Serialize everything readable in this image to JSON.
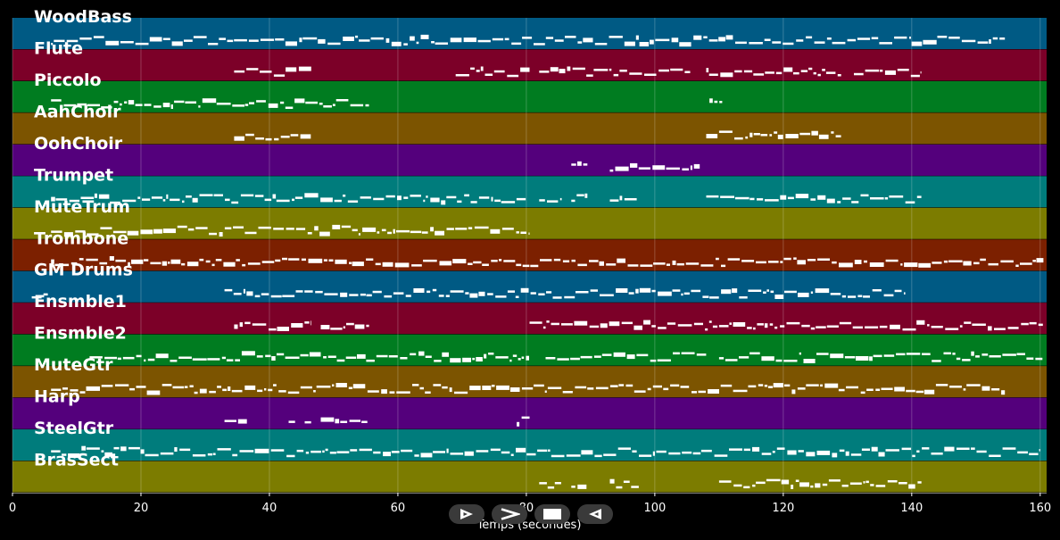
{
  "chart_data": {
    "type": "piano-roll",
    "title": "",
    "xlabel": "Temps (secondes)",
    "ylabel": "",
    "xlim": [
      0,
      161
    ],
    "xticks": [
      0,
      20,
      40,
      60,
      80,
      100,
      120,
      140,
      160
    ],
    "grid": true,
    "tracks": [
      {
        "name": "WoodBass",
        "color": "#005a84",
        "segments": [
          [
            6,
            154.5
          ]
        ],
        "activity": [
          [
            6,
            154.5
          ]
        ]
      },
      {
        "name": "Flute",
        "color": "#7c0028",
        "segments": [
          [
            34.5,
            46.5
          ],
          [
            69,
            80.5
          ],
          [
            82,
            105.5
          ],
          [
            108,
            129
          ],
          [
            131,
            141.5
          ]
        ],
        "activity": [
          [
            34.5,
            46.5
          ],
          [
            69,
            80.5
          ],
          [
            82,
            105.5
          ],
          [
            108,
            129
          ],
          [
            131,
            141.5
          ]
        ]
      },
      {
        "name": "Piccolo",
        "color": "#007c20",
        "segments": [
          [
            6,
            55.5
          ],
          [
            108.5,
            110.5
          ]
        ],
        "activity": [
          [
            6,
            55.5
          ],
          [
            108.5,
            110.5
          ]
        ]
      },
      {
        "name": "AahChoir",
        "color": "#7c5400",
        "segments": [
          [
            34.5,
            46.5
          ],
          [
            108,
            129
          ]
        ],
        "activity": [
          [
            34.5,
            46.5
          ],
          [
            108,
            129
          ]
        ]
      },
      {
        "name": "OohChoir",
        "color": "#54007c",
        "segments": [
          [
            87,
            89.5
          ],
          [
            93,
            107
          ]
        ],
        "activity": [
          [
            87,
            89.5
          ],
          [
            93,
            107
          ]
        ]
      },
      {
        "name": "Trumpet",
        "color": "#007c7c",
        "segments": [
          [
            6,
            80
          ],
          [
            82,
            85.5
          ],
          [
            87,
            89.5
          ],
          [
            93,
            97.5
          ],
          [
            108,
            141.5
          ]
        ],
        "activity": [
          [
            6,
            80
          ],
          [
            82,
            85.5
          ],
          [
            87,
            89.5
          ],
          [
            93,
            97.5
          ],
          [
            108,
            141.5
          ]
        ]
      },
      {
        "name": "MuteTrum",
        "color": "#7c7c00",
        "segments": [
          [
            6,
            80.5
          ]
        ],
        "activity": [
          [
            6,
            80.5
          ]
        ]
      },
      {
        "name": "Trombone",
        "color": "#7c2000",
        "segments": [
          [
            6,
            160.5
          ]
        ],
        "activity": [
          [
            6,
            160.5
          ]
        ]
      },
      {
        "name": "GM Drums",
        "color": "#005a84",
        "segments": [
          [
            3,
            5.5
          ],
          [
            33,
            139
          ]
        ],
        "activity": [
          [
            3,
            5.5
          ],
          [
            33,
            139
          ]
        ]
      },
      {
        "name": "Ensmble1",
        "color": "#7c0028",
        "segments": [
          [
            34.5,
            46.5
          ],
          [
            48,
            55.5
          ],
          [
            80.5,
            160.5
          ]
        ],
        "activity": [
          [
            34.5,
            46.5
          ],
          [
            48,
            55.5
          ],
          [
            80.5,
            160.5
          ]
        ]
      },
      {
        "name": "Ensmble2",
        "color": "#007c20",
        "segments": [
          [
            12,
            80.5
          ],
          [
            83,
            108
          ],
          [
            110,
            160.5
          ]
        ],
        "activity": [
          [
            12,
            80.5
          ],
          [
            83,
            108
          ],
          [
            110,
            160.5
          ]
        ]
      },
      {
        "name": "MuteGtr",
        "color": "#7c5400",
        "segments": [
          [
            6,
            154.5
          ]
        ],
        "activity": [
          [
            6,
            154.5
          ]
        ]
      },
      {
        "name": "Harp",
        "color": "#54007c",
        "segments": [
          [
            33,
            36.5
          ],
          [
            43,
            44
          ],
          [
            45.5,
            46.5
          ],
          [
            48,
            55.5
          ],
          [
            78.5,
            80.5
          ]
        ],
        "activity": [
          [
            33,
            36.5
          ],
          [
            43,
            44
          ],
          [
            45.5,
            46.5
          ],
          [
            48,
            55.5
          ],
          [
            78.5,
            80.5
          ]
        ]
      },
      {
        "name": "SteelGtr",
        "color": "#007c7c",
        "segments": [
          [
            6,
            160
          ]
        ],
        "activity": [
          [
            6,
            160
          ]
        ]
      },
      {
        "name": "BrasSect",
        "color": "#7c7c00",
        "segments": [
          [
            82,
            85.5
          ],
          [
            87,
            89.5
          ],
          [
            93,
            97.5
          ],
          [
            110,
            141.5
          ]
        ],
        "activity": [
          [
            82,
            85.5
          ],
          [
            87,
            89.5
          ],
          [
            93,
            97.5
          ],
          [
            110,
            141.5
          ]
        ]
      }
    ]
  },
  "controls": {
    "play_icon": "play-outline-icon",
    "forward_icon": "chevron-right-icon",
    "stop_icon": "stop-icon",
    "back_icon": "play-back-icon",
    "button_color": "#3a3a3a"
  }
}
